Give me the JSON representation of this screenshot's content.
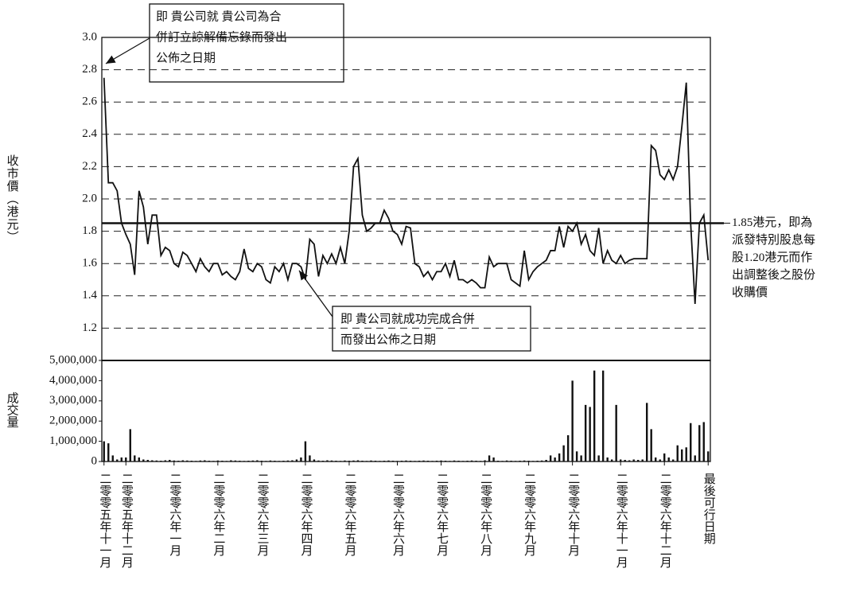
{
  "chart_data": {
    "type": "line",
    "ylabel": "收市價（港元）",
    "y2label": "成交量",
    "categories": [
      "二零零五年十一月",
      null,
      null,
      null,
      null,
      "二零零五年十二月",
      null,
      null,
      null,
      null,
      null,
      null,
      null,
      null,
      null,
      null,
      "二零零六年一月",
      null,
      null,
      null,
      null,
      null,
      null,
      null,
      null,
      null,
      "二零零六年二月",
      null,
      null,
      null,
      null,
      null,
      null,
      null,
      null,
      null,
      "二零零六年三月",
      null,
      null,
      null,
      null,
      null,
      null,
      null,
      null,
      null,
      "二零零六年四月",
      null,
      null,
      null,
      null,
      null,
      null,
      null,
      null,
      null,
      "二零零六年五月",
      null,
      null,
      null,
      null,
      null,
      null,
      null,
      null,
      null,
      null,
      "二零零六年六月",
      null,
      null,
      null,
      null,
      null,
      null,
      null,
      null,
      null,
      "二零零六年七月",
      null,
      null,
      null,
      null,
      null,
      null,
      null,
      null,
      null,
      "二零零六年八月",
      null,
      null,
      null,
      null,
      null,
      null,
      null,
      null,
      null,
      "二零零六年九月",
      null,
      null,
      null,
      null,
      null,
      null,
      null,
      null,
      null,
      "二零零六年十月",
      null,
      null,
      null,
      null,
      null,
      null,
      null,
      null,
      null,
      null,
      "二零零六年十一月",
      null,
      null,
      null,
      null,
      null,
      null,
      null,
      null,
      null,
      "二零零六年十二月",
      null,
      null,
      null,
      null,
      null,
      null,
      null,
      null,
      null,
      "最後可行日期"
    ],
    "series": [
      {
        "name": "收市價",
        "color": "#111111",
        "values": [
          2.75,
          2.1,
          2.1,
          2.05,
          1.85,
          1.78,
          1.72,
          1.53,
          2.05,
          1.95,
          1.72,
          1.9,
          1.9,
          1.65,
          1.7,
          1.68,
          1.6,
          1.58,
          1.67,
          1.65,
          1.6,
          1.55,
          1.63,
          1.58,
          1.55,
          1.6,
          1.6,
          1.53,
          1.55,
          1.52,
          1.5,
          1.55,
          1.69,
          1.57,
          1.55,
          1.6,
          1.58,
          1.5,
          1.48,
          1.58,
          1.55,
          1.6,
          1.5,
          1.6,
          1.6,
          1.58,
          1.5,
          1.75,
          1.72,
          1.52,
          1.65,
          1.6,
          1.66,
          1.6,
          1.7,
          1.6,
          1.8,
          2.2,
          2.25,
          1.9,
          1.8,
          1.82,
          1.85,
          1.85,
          1.93,
          1.88,
          1.8,
          1.78,
          1.72,
          1.83,
          1.82,
          1.6,
          1.58,
          1.52,
          1.55,
          1.5,
          1.55,
          1.55,
          1.6,
          1.52,
          1.62,
          1.5,
          1.5,
          1.48,
          1.5,
          1.48,
          1.45,
          1.45,
          1.64,
          1.58,
          1.6,
          1.6,
          1.6,
          1.5,
          1.48,
          1.46,
          1.68,
          1.5,
          1.55,
          1.58,
          1.6,
          1.62,
          1.68,
          1.68,
          1.83,
          1.7,
          1.83,
          1.8,
          1.85,
          1.72,
          1.78,
          1.68,
          1.65,
          1.82,
          1.6,
          1.68,
          1.62,
          1.6,
          1.65,
          1.6,
          1.62,
          1.63,
          1.63,
          1.63,
          1.63,
          2.33,
          2.3,
          2.15,
          2.12,
          2.18,
          2.12,
          2.2,
          2.45,
          2.72,
          1.85,
          1.35,
          1.85,
          1.9,
          1.62
        ]
      },
      {
        "name": "成交量",
        "color": "#111111",
        "axis": "y2",
        "values": [
          1000000,
          900000,
          300000,
          100000,
          200000,
          200000,
          1600000,
          300000,
          200000,
          100000,
          80000,
          60000,
          50000,
          40000,
          60000,
          80000,
          50000,
          40000,
          60000,
          50000,
          40000,
          30000,
          50000,
          60000,
          40000,
          30000,
          50000,
          40000,
          30000,
          60000,
          50000,
          40000,
          30000,
          40000,
          50000,
          60000,
          40000,
          30000,
          50000,
          40000,
          30000,
          40000,
          50000,
          60000,
          100000,
          200000,
          1000000,
          300000,
          100000,
          50000,
          40000,
          60000,
          50000,
          40000,
          30000,
          50000,
          40000,
          50000,
          60000,
          40000,
          30000,
          50000,
          40000,
          30000,
          40000,
          50000,
          40000,
          30000,
          40000,
          50000,
          40000,
          30000,
          40000,
          50000,
          40000,
          30000,
          40000,
          50000,
          40000,
          30000,
          50000,
          40000,
          30000,
          40000,
          50000,
          40000,
          30000,
          60000,
          300000,
          200000,
          40000,
          30000,
          50000,
          40000,
          30000,
          40000,
          50000,
          40000,
          30000,
          40000,
          50000,
          80000,
          300000,
          200000,
          400000,
          800000,
          1300000,
          4000000,
          500000,
          300000,
          2800000,
          2700000,
          4500000,
          300000,
          4500000,
          200000,
          100000,
          2800000,
          100000,
          80000,
          60000,
          100000,
          80000,
          100000,
          2900000,
          1600000,
          200000,
          100000,
          400000,
          200000,
          100000,
          800000,
          600000,
          700000,
          1900000,
          300000,
          1800000,
          1950000,
          500000
        ]
      }
    ],
    "ylim": [
      1.0,
      3.0
    ],
    "yticks": [
      1.2,
      1.4,
      1.6,
      1.8,
      {
        "value": 2,
        "label": "2.0"
      },
      2.2,
      2.4,
      2.6,
      2.8,
      {
        "value": 3,
        "label": "3.0"
      }
    ],
    "y2lim": [
      0,
      5000000
    ],
    "y2ticks": [
      0,
      {
        "value": 1000000,
        "label": "1,000,000"
      },
      {
        "value": 2000000,
        "label": "2,000,000"
      },
      {
        "value": 3000000,
        "label": "3,000,000"
      },
      {
        "value": 4000000,
        "label": "4,000,000"
      },
      {
        "value": 5000000,
        "label": "5,000,000"
      }
    ],
    "grid": true,
    "reference_line": {
      "value": 1.85,
      "label": [
        "1.85港元，即為",
        "派發特別股息每",
        "股1.20港元而作",
        "出調整後之股份",
        "收購價"
      ]
    },
    "annotations": [
      {
        "lines": [
          "即 貴公司就 貴公司為合",
          "併訂立諒解備忘錄而發出",
          "公佈之日期"
        ]
      },
      {
        "lines": [
          "即 貴公司就成功完成合併",
          "而發出公佈之日期"
        ]
      }
    ]
  }
}
